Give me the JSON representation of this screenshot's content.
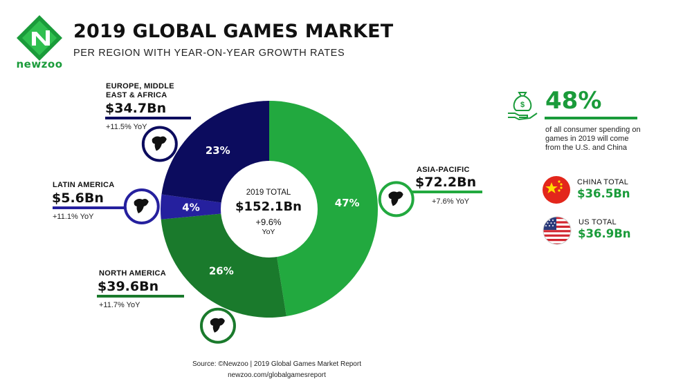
{
  "brand": {
    "name": "newzoo",
    "color": "#1a9b3a"
  },
  "header": {
    "title": "2019 GLOBAL GAMES MARKET",
    "subtitle": "PER REGION WITH YEAR-ON-YEAR GROWTH RATES"
  },
  "chart_data": {
    "type": "pie",
    "title": "2019 GLOBAL GAMES MARKET",
    "subtitle": "PER REGION WITH YEAR-ON-YEAR GROWTH RATES",
    "total": {
      "label": "2019 TOTAL",
      "value": "$152.1Bn",
      "growth": "+9.6%",
      "growth_unit": "YoY"
    },
    "slices": [
      {
        "name": "ASIA-PACIFIC",
        "value_text": "$72.2Bn",
        "value_bn": 72.2,
        "share_pct": 47,
        "share_label": "47%",
        "yoy": "+7.6% YoY",
        "color": "#22a93f",
        "icon": "asia-australia-map-icon"
      },
      {
        "name": "NORTH AMERICA",
        "value_text": "$39.6Bn",
        "value_bn": 39.6,
        "share_pct": 26,
        "share_label": "26%",
        "yoy": "+11.7% YoY",
        "color": "#1a7a2c",
        "icon": "north-america-map-icon"
      },
      {
        "name": "LATIN AMERICA",
        "value_text": "$5.6Bn",
        "value_bn": 5.6,
        "share_pct": 4,
        "share_label": "4%",
        "yoy": "+11.1% YoY",
        "color": "#25209e",
        "icon": "south-america-map-icon"
      },
      {
        "name": "EUROPE, MIDDLE EAST & AFRICA",
        "name_lines": [
          "EUROPE, MIDDLE",
          "EAST & AFRICA"
        ],
        "value_text": "$34.7Bn",
        "value_bn": 34.7,
        "share_pct": 23,
        "share_label": "23%",
        "yoy": "+11.5% YoY",
        "color": "#0c0c5e",
        "icon": "europe-africa-map-icon"
      }
    ]
  },
  "sidebar": {
    "share": {
      "icon": "money-bag-hand-icon",
      "value": "48%",
      "description": "of all consumer spending on games in 2019 will come from the U.S. and China"
    },
    "china": {
      "label": "CHINA TOTAL",
      "value": "$36.5Bn",
      "icon": "china-flag-icon"
    },
    "us": {
      "label": "US TOTAL",
      "value": "$36.9Bn",
      "icon": "us-flag-icon"
    }
  },
  "footer": {
    "source": "Source: ©Newzoo | 2019 Global Games Market Report",
    "url": "newzoo.com/globalgamesreport"
  }
}
